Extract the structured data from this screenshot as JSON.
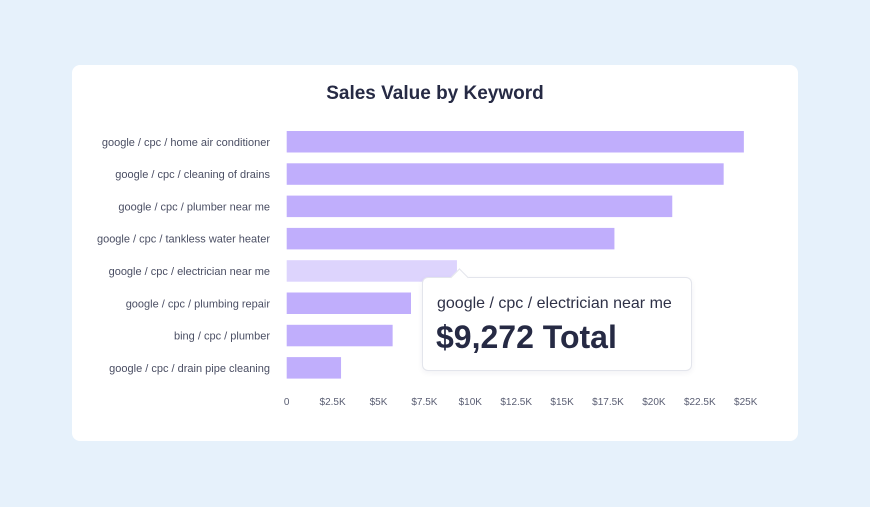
{
  "chart_data": {
    "type": "bar",
    "orientation": "horizontal",
    "title": "Sales Value by Keyword",
    "categories": [
      "google / cpc / home air conditioner",
      "google / cpc / cleaning of drains",
      "google / cpc / plumber near me",
      "google / cpc / tankless water heater",
      "google / cpc / electrician near me",
      "google / cpc / plumbing repair",
      "bing / cpc / plumber",
      "google / cpc / drain pipe cleaning"
    ],
    "values": [
      24900,
      23800,
      21000,
      17850,
      9272,
      6770,
      5770,
      2960
    ],
    "xlim": [
      0,
      25000
    ],
    "x_ticks": [
      "0",
      "$2.5K",
      "$5K",
      "$7.5K",
      "$10K",
      "$12.5K",
      "$15K",
      "$17.5K",
      "$20K",
      "$22.5K",
      "$25K"
    ],
    "grid": false,
    "bar_color": "#c0aefc",
    "highlight_color": "#ddd4fd",
    "highlighted_index": 4,
    "tooltip": {
      "label": "google / cpc / electrician near me",
      "value": "$9,272 Total"
    }
  }
}
